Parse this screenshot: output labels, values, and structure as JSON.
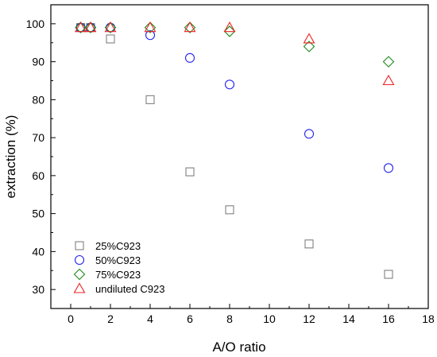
{
  "chart_data": {
    "type": "scatter",
    "title": "",
    "xlabel": "A/O ratio",
    "ylabel": "extraction (%)",
    "xlim": [
      -1,
      18
    ],
    "ylim": [
      25,
      105
    ],
    "xticks": [
      0,
      2,
      4,
      6,
      8,
      10,
      12,
      14,
      16,
      18
    ],
    "yticks": [
      30,
      40,
      50,
      60,
      70,
      80,
      90,
      100
    ],
    "xtick_labels": [
      "0",
      "2",
      "4",
      "6",
      "8",
      "10",
      "12",
      "14",
      "16",
      "18"
    ],
    "ytick_labels": [
      "30",
      "40",
      "50",
      "60",
      "70",
      "80",
      "90",
      "100"
    ],
    "grid": false,
    "legend_position": "bottom-left",
    "series": [
      {
        "name": "25%C923",
        "marker": "square",
        "color": "#808080",
        "x": [
          0.5,
          1,
          2,
          4,
          6,
          8,
          12,
          16
        ],
        "y": [
          99,
          99,
          96,
          80,
          61,
          51,
          42,
          34
        ]
      },
      {
        "name": "50%C923",
        "marker": "circle",
        "color": "#2222ee",
        "x": [
          0.5,
          1,
          2,
          4,
          6,
          8,
          12,
          16
        ],
        "y": [
          99,
          99,
          99,
          97,
          91,
          84,
          71,
          62
        ]
      },
      {
        "name": "75%C923",
        "marker": "diamond",
        "color": "#1a8a1a",
        "x": [
          0.5,
          1,
          2,
          4,
          6,
          8,
          12,
          16
        ],
        "y": [
          99,
          99,
          99,
          99,
          99,
          98,
          94,
          90
        ]
      },
      {
        "name": "undiluted C923",
        "marker": "triangle",
        "color": "#ee2222",
        "x": [
          0.5,
          1,
          2,
          4,
          6,
          8,
          12,
          16
        ],
        "y": [
          99,
          99,
          99,
          99,
          99,
          99,
          96,
          85
        ]
      }
    ]
  }
}
